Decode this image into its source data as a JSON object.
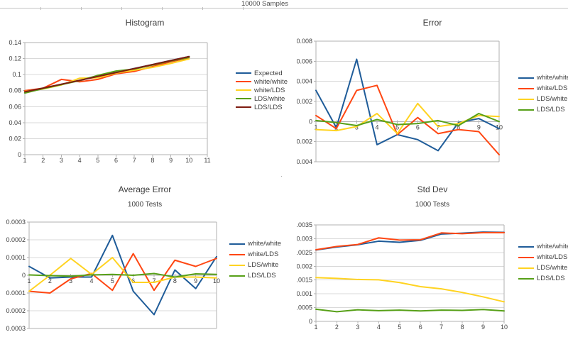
{
  "sheet": {
    "title": "10000 Samples"
  },
  "chart_data": [
    {
      "type": "line",
      "title": "Histogram",
      "subtitle": "",
      "x": [
        1,
        2,
        3,
        4,
        5,
        6,
        7,
        8,
        9,
        10
      ],
      "x_tick_labels": [
        "1",
        "2",
        "3",
        "4",
        "5",
        "6",
        "7",
        "8",
        "9",
        "10",
        "11"
      ],
      "y_tick_labels": [
        "0.14",
        "0.12",
        "0.1",
        "0.08",
        "0.06",
        "0.04",
        "0.02",
        "0"
      ],
      "ylim": [
        0,
        0.14
      ],
      "grid": true,
      "legend_position": "right",
      "series": [
        {
          "name": "Expected",
          "color": "#1f5c99",
          "values": [
            0.078,
            0.0829,
            0.0879,
            0.0928,
            0.0978,
            0.1027,
            0.1077,
            0.1126,
            0.1176,
            0.1225
          ]
        },
        {
          "name": "white/white",
          "color": "#ff4713",
          "values": [
            0.08,
            0.083,
            0.094,
            0.091,
            0.094,
            0.101,
            0.104,
            0.11,
            0.116,
            0.121
          ]
        },
        {
          "name": "white/LDS",
          "color": "#ffd321",
          "values": [
            0.079,
            0.082,
            0.087,
            0.0955,
            0.096,
            0.102,
            0.1055,
            0.109,
            0.114,
            0.1195
          ]
        },
        {
          "name": "LDS/white",
          "color": "#57a018",
          "values": [
            0.077,
            0.0825,
            0.0875,
            0.0925,
            0.099,
            0.1045,
            0.107,
            0.112,
            0.117,
            0.1215
          ]
        },
        {
          "name": "LDS/LDS",
          "color": "#7e1b10",
          "values": [
            0.0785,
            0.0832,
            0.088,
            0.0928,
            0.0977,
            0.1025,
            0.1075,
            0.1125,
            0.1175,
            0.1225
          ]
        }
      ]
    },
    {
      "type": "line",
      "title": "Error",
      "subtitle": "",
      "x": [
        1,
        2,
        3,
        4,
        5,
        6,
        7,
        8,
        9,
        10
      ],
      "x_tick_labels": [
        "1",
        "2",
        "3",
        "4",
        "5",
        "6",
        "7",
        "8",
        "9",
        "10"
      ],
      "y_tick_labels": [
        "0.008",
        "0.006",
        "0.004",
        "0.002",
        "0",
        "-0.002",
        "-0.004"
      ],
      "ylim": [
        -0.004,
        0.008
      ],
      "grid": true,
      "legend_position": "right",
      "series": [
        {
          "name": "white/white",
          "color": "#1f5c99",
          "values": [
            0.0031,
            -0.0006,
            0.0062,
            -0.0023,
            -0.0013,
            -0.0018,
            -0.0029,
            -0.0001,
            0.0003,
            -0.0007
          ]
        },
        {
          "name": "white/LDS",
          "color": "#ff4713",
          "values": [
            0.0006,
            -0.0007,
            0.0031,
            0.0036,
            -0.0013,
            0.0004,
            -0.0012,
            -0.0008,
            -0.001,
            -0.0033
          ]
        },
        {
          "name": "LDS/white",
          "color": "#ffd321",
          "values": [
            -0.0008,
            -0.0009,
            -0.0005,
            0.0008,
            -0.0012,
            0.0018,
            -0.0005,
            -0.0002,
            0.0006,
            0.0005
          ]
        },
        {
          "name": "LDS/LDS",
          "color": "#57a018",
          "values": [
            0.0001,
            -0.0001,
            -0.0004,
            0.0002,
            -0.0003,
            -0.0002,
            0.0001,
            -0.0004,
            0.0008,
            0.0
          ]
        }
      ]
    },
    {
      "type": "line",
      "title": "Average Error",
      "subtitle": "1000 Tests",
      "x": [
        1,
        2,
        3,
        4,
        5,
        6,
        7,
        8,
        9,
        10
      ],
      "x_tick_labels": [
        "1",
        "2",
        "3",
        "4",
        "5",
        "6",
        "7",
        "8",
        "9",
        "10"
      ],
      "y_tick_labels": [
        "0.0003",
        "0.0002",
        "0.0001",
        "0",
        "-0.0001",
        "-0.0002",
        "-0.0003"
      ],
      "ylim": [
        -0.0003,
        0.0003
      ],
      "grid": true,
      "legend_position": "right",
      "series": [
        {
          "name": "white/white",
          "color": "#1f5c99",
          "values": [
            5e-05,
            -1.5e-05,
            -1e-05,
            -1e-05,
            0.000225,
            -9e-05,
            -0.000222,
            3e-05,
            -7.5e-05,
            0.000105
          ]
        },
        {
          "name": "white/LDS",
          "color": "#ff4713",
          "values": [
            -9e-05,
            -0.0001,
            -2e-05,
            1e-05,
            -8.5e-05,
            0.000122,
            -8.5e-05,
            8.5e-05,
            5e-05,
            9.5e-05
          ]
        },
        {
          "name": "LDS/white",
          "color": "#ffd321",
          "values": [
            -9e-05,
            0.0,
            9.5e-05,
            5e-06,
            0.0001,
            -4e-05,
            -4e-05,
            -1e-05,
            -1e-05,
            -1.5e-05
          ]
        },
        {
          "name": "LDS/LDS",
          "color": "#57a018",
          "values": [
            2e-06,
            -2e-06,
            -5e-06,
            2e-06,
            5e-06,
            0.0,
            1e-05,
            -1e-05,
            8e-06,
            5e-06
          ]
        }
      ]
    },
    {
      "type": "line",
      "title": "Std Dev",
      "subtitle": "1000 Tests",
      "x": [
        1,
        2,
        3,
        4,
        5,
        6,
        7,
        8,
        9,
        10
      ],
      "x_tick_labels": [
        "1",
        "2",
        "3",
        "4",
        "5",
        "6",
        "7",
        "8",
        "9",
        "10"
      ],
      "y_tick_labels": [
        "0.0035",
        "0.003",
        "0.0025",
        "0.002",
        "0.0015",
        "0.001",
        "0.0005",
        "0"
      ],
      "ylim": [
        0,
        0.0035
      ],
      "grid": true,
      "legend_position": "right",
      "series": [
        {
          "name": "white/white",
          "color": "#1f5c99",
          "values": [
            0.00259,
            0.0027,
            0.00278,
            0.00291,
            0.00287,
            0.00294,
            0.00317,
            0.0032,
            0.00324,
            0.00323
          ]
        },
        {
          "name": "white/LDS",
          "color": "#ff4713",
          "values": [
            0.0026,
            0.00272,
            0.00279,
            0.00303,
            0.00295,
            0.00296,
            0.00321,
            0.00318,
            0.00322,
            0.00322
          ]
        },
        {
          "name": "LDS/white",
          "color": "#ffd321",
          "values": [
            0.00159,
            0.00156,
            0.00152,
            0.00151,
            0.00141,
            0.00126,
            0.00118,
            0.00105,
            0.00089,
            0.00071
          ]
        },
        {
          "name": "LDS/LDS",
          "color": "#57a018",
          "values": [
            0.00044,
            0.00035,
            0.00042,
            0.00039,
            0.00041,
            0.00038,
            0.00041,
            0.0004,
            0.00043,
            0.00038
          ]
        }
      ]
    }
  ]
}
